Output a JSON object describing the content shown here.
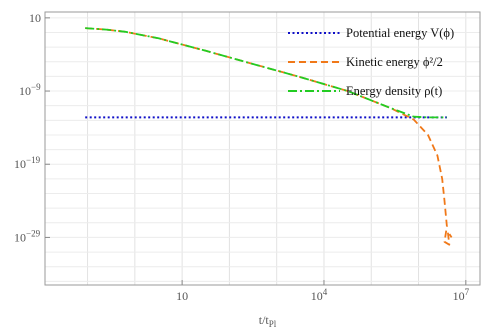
{
  "chart_data": {
    "type": "line",
    "x_scale": "log",
    "y_scale": "log",
    "xlim_log10": [
      -1.9,
      7.3
    ],
    "ylim_log10": [
      -35.5,
      1.8
    ],
    "x_ticks": [
      {
        "log": 1,
        "label": "10",
        "sup": ""
      },
      {
        "log": 4,
        "label": "10",
        "sup": "4"
      },
      {
        "log": 7,
        "label": "10",
        "sup": "7"
      }
    ],
    "y_ticks": [
      {
        "log": 1,
        "label": "10",
        "sup": ""
      },
      {
        "log": -9,
        "label": "10",
        "sup": "−9"
      },
      {
        "log": -19,
        "label": "10",
        "sup": "−19"
      },
      {
        "log": -29,
        "label": "10",
        "sup": "−29"
      }
    ],
    "xlabel": {
      "text": "t/t",
      "sub": "Pl"
    },
    "grid": true,
    "legend_position": "top-right",
    "series": [
      {
        "name": "Potential energy V(ϕ)",
        "color": "#1010c8",
        "dash": "dotted",
        "points": [
          [
            -1.05,
            -12.6
          ],
          [
            0.5,
            -12.6
          ],
          [
            2.0,
            -12.6
          ],
          [
            3.5,
            -12.6
          ],
          [
            5.0,
            -12.6
          ],
          [
            6.6,
            -12.6
          ]
        ]
      },
      {
        "name": "Kinetic energy ϕ²/2",
        "color": "#f07818",
        "dash": "dashed",
        "points": [
          [
            -1.05,
            -0.4
          ],
          [
            -0.6,
            -0.6
          ],
          [
            -0.2,
            -0.9
          ],
          [
            0.5,
            -1.8
          ],
          [
            1.5,
            -3.5
          ],
          [
            2.5,
            -5.3
          ],
          [
            3.5,
            -7.1
          ],
          [
            4.5,
            -9.0
          ],
          [
            5.4,
            -11.3
          ],
          [
            5.9,
            -12.9
          ],
          [
            6.2,
            -15.0
          ],
          [
            6.4,
            -17.8
          ],
          [
            6.5,
            -21.0
          ],
          [
            6.55,
            -24.0
          ],
          [
            6.6,
            -27.5
          ],
          [
            6.55,
            -29.6
          ],
          [
            6.65,
            -30.0
          ],
          [
            6.62,
            -28.2
          ],
          [
            6.7,
            -29.0
          ]
        ]
      },
      {
        "name": "Energy density ρ(t)",
        "color": "#22cc22",
        "dash": "dashdot",
        "points": [
          [
            -1.05,
            -0.4
          ],
          [
            -0.6,
            -0.6
          ],
          [
            -0.2,
            -0.9
          ],
          [
            0.5,
            -1.8
          ],
          [
            1.5,
            -3.5
          ],
          [
            2.5,
            -5.3
          ],
          [
            3.5,
            -7.1
          ],
          [
            4.5,
            -9.0
          ],
          [
            5.4,
            -11.3
          ],
          [
            5.9,
            -12.5
          ],
          [
            6.2,
            -12.6
          ],
          [
            6.6,
            -12.6
          ]
        ]
      }
    ]
  }
}
